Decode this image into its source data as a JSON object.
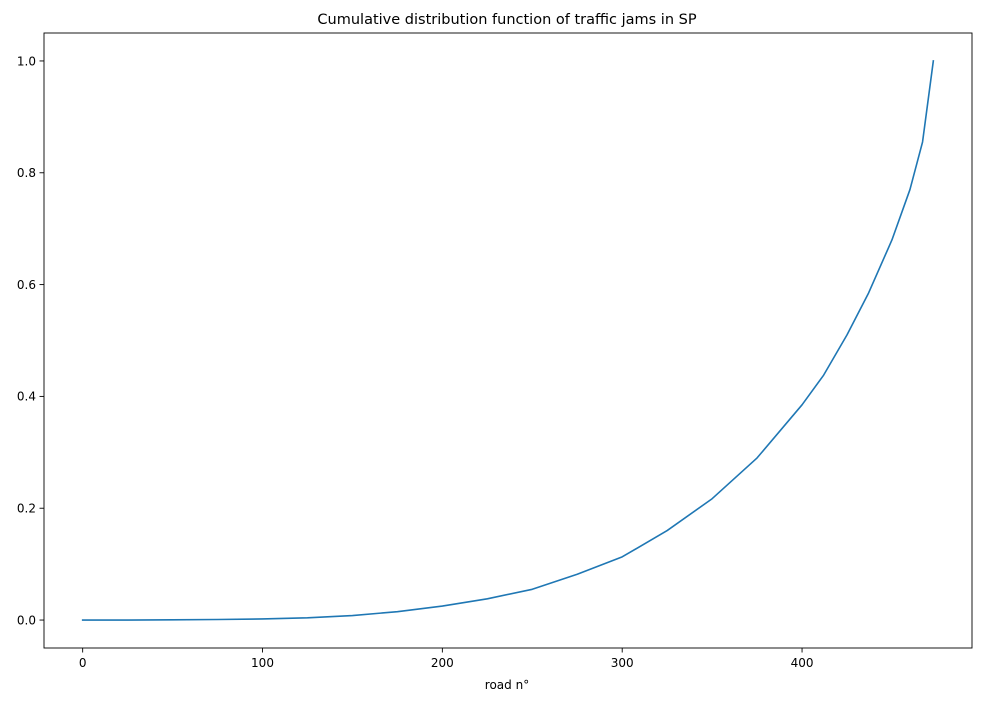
{
  "chart_data": {
    "type": "line",
    "title": "Cumulative distribution function of traffic jams in SP",
    "xlabel": "road n°",
    "ylabel": "",
    "xlim": [
      -21.5,
      494.5
    ],
    "ylim": [
      -0.05,
      1.05
    ],
    "xticks": [
      0,
      100,
      200,
      300,
      400
    ],
    "xtick_labels": [
      "0",
      "100",
      "200",
      "300",
      "400"
    ],
    "yticks": [
      0.0,
      0.2,
      0.4,
      0.6,
      0.8,
      1.0
    ],
    "ytick_labels": [
      "0.0",
      "0.2",
      "0.4",
      "0.6",
      "0.8",
      "1.0"
    ],
    "grid": false,
    "legend": "none",
    "series": [
      {
        "color": "#1f77b4",
        "x": [
          0,
          25,
          50,
          75,
          100,
          125,
          150,
          175,
          200,
          225,
          250,
          275,
          300,
          325,
          350,
          375,
          400,
          412,
          425,
          437,
          450,
          460,
          467,
          473
        ],
        "y": [
          0.0,
          0.0,
          0.0005,
          0.001,
          0.002,
          0.004,
          0.008,
          0.015,
          0.025,
          0.038,
          0.055,
          0.082,
          0.113,
          0.16,
          0.217,
          0.29,
          0.385,
          0.438,
          0.51,
          0.585,
          0.68,
          0.77,
          0.855,
          1.0
        ]
      }
    ]
  }
}
